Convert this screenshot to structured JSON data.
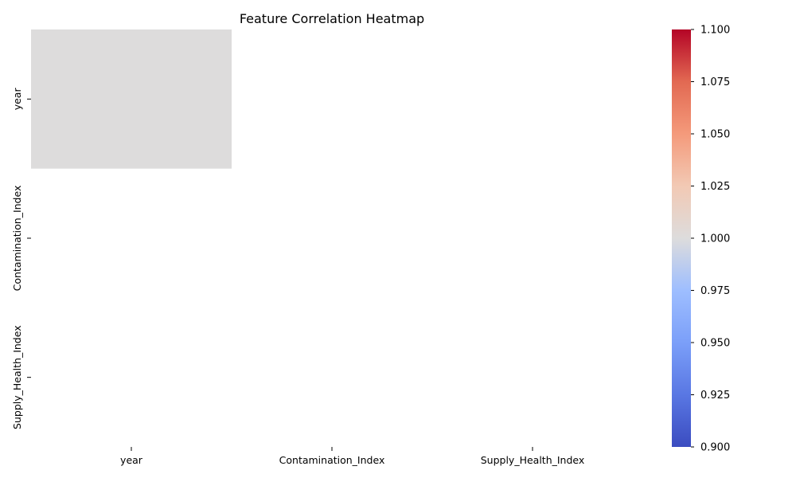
{
  "chart_data": {
    "type": "heatmap",
    "title": "Feature Correlation Heatmap",
    "xlabel": "",
    "ylabel": "",
    "x_categories": [
      "year",
      "Contamination_Index",
      "Supply_Health_Index"
    ],
    "y_categories": [
      "year",
      "Contamination_Index",
      "Supply_Health_Index"
    ],
    "values": [
      [
        1.0,
        null,
        null
      ],
      [
        null,
        null,
        null
      ],
      [
        null,
        null,
        null
      ]
    ],
    "colormap": "coolwarm",
    "colorbar": {
      "vmin": 0.9,
      "vmax": 1.1,
      "ticks": [
        "0.900",
        "0.925",
        "0.950",
        "0.975",
        "1.000",
        "1.025",
        "1.050",
        "1.075",
        "1.100"
      ]
    },
    "grid": false,
    "legend": "colorbar-right"
  }
}
